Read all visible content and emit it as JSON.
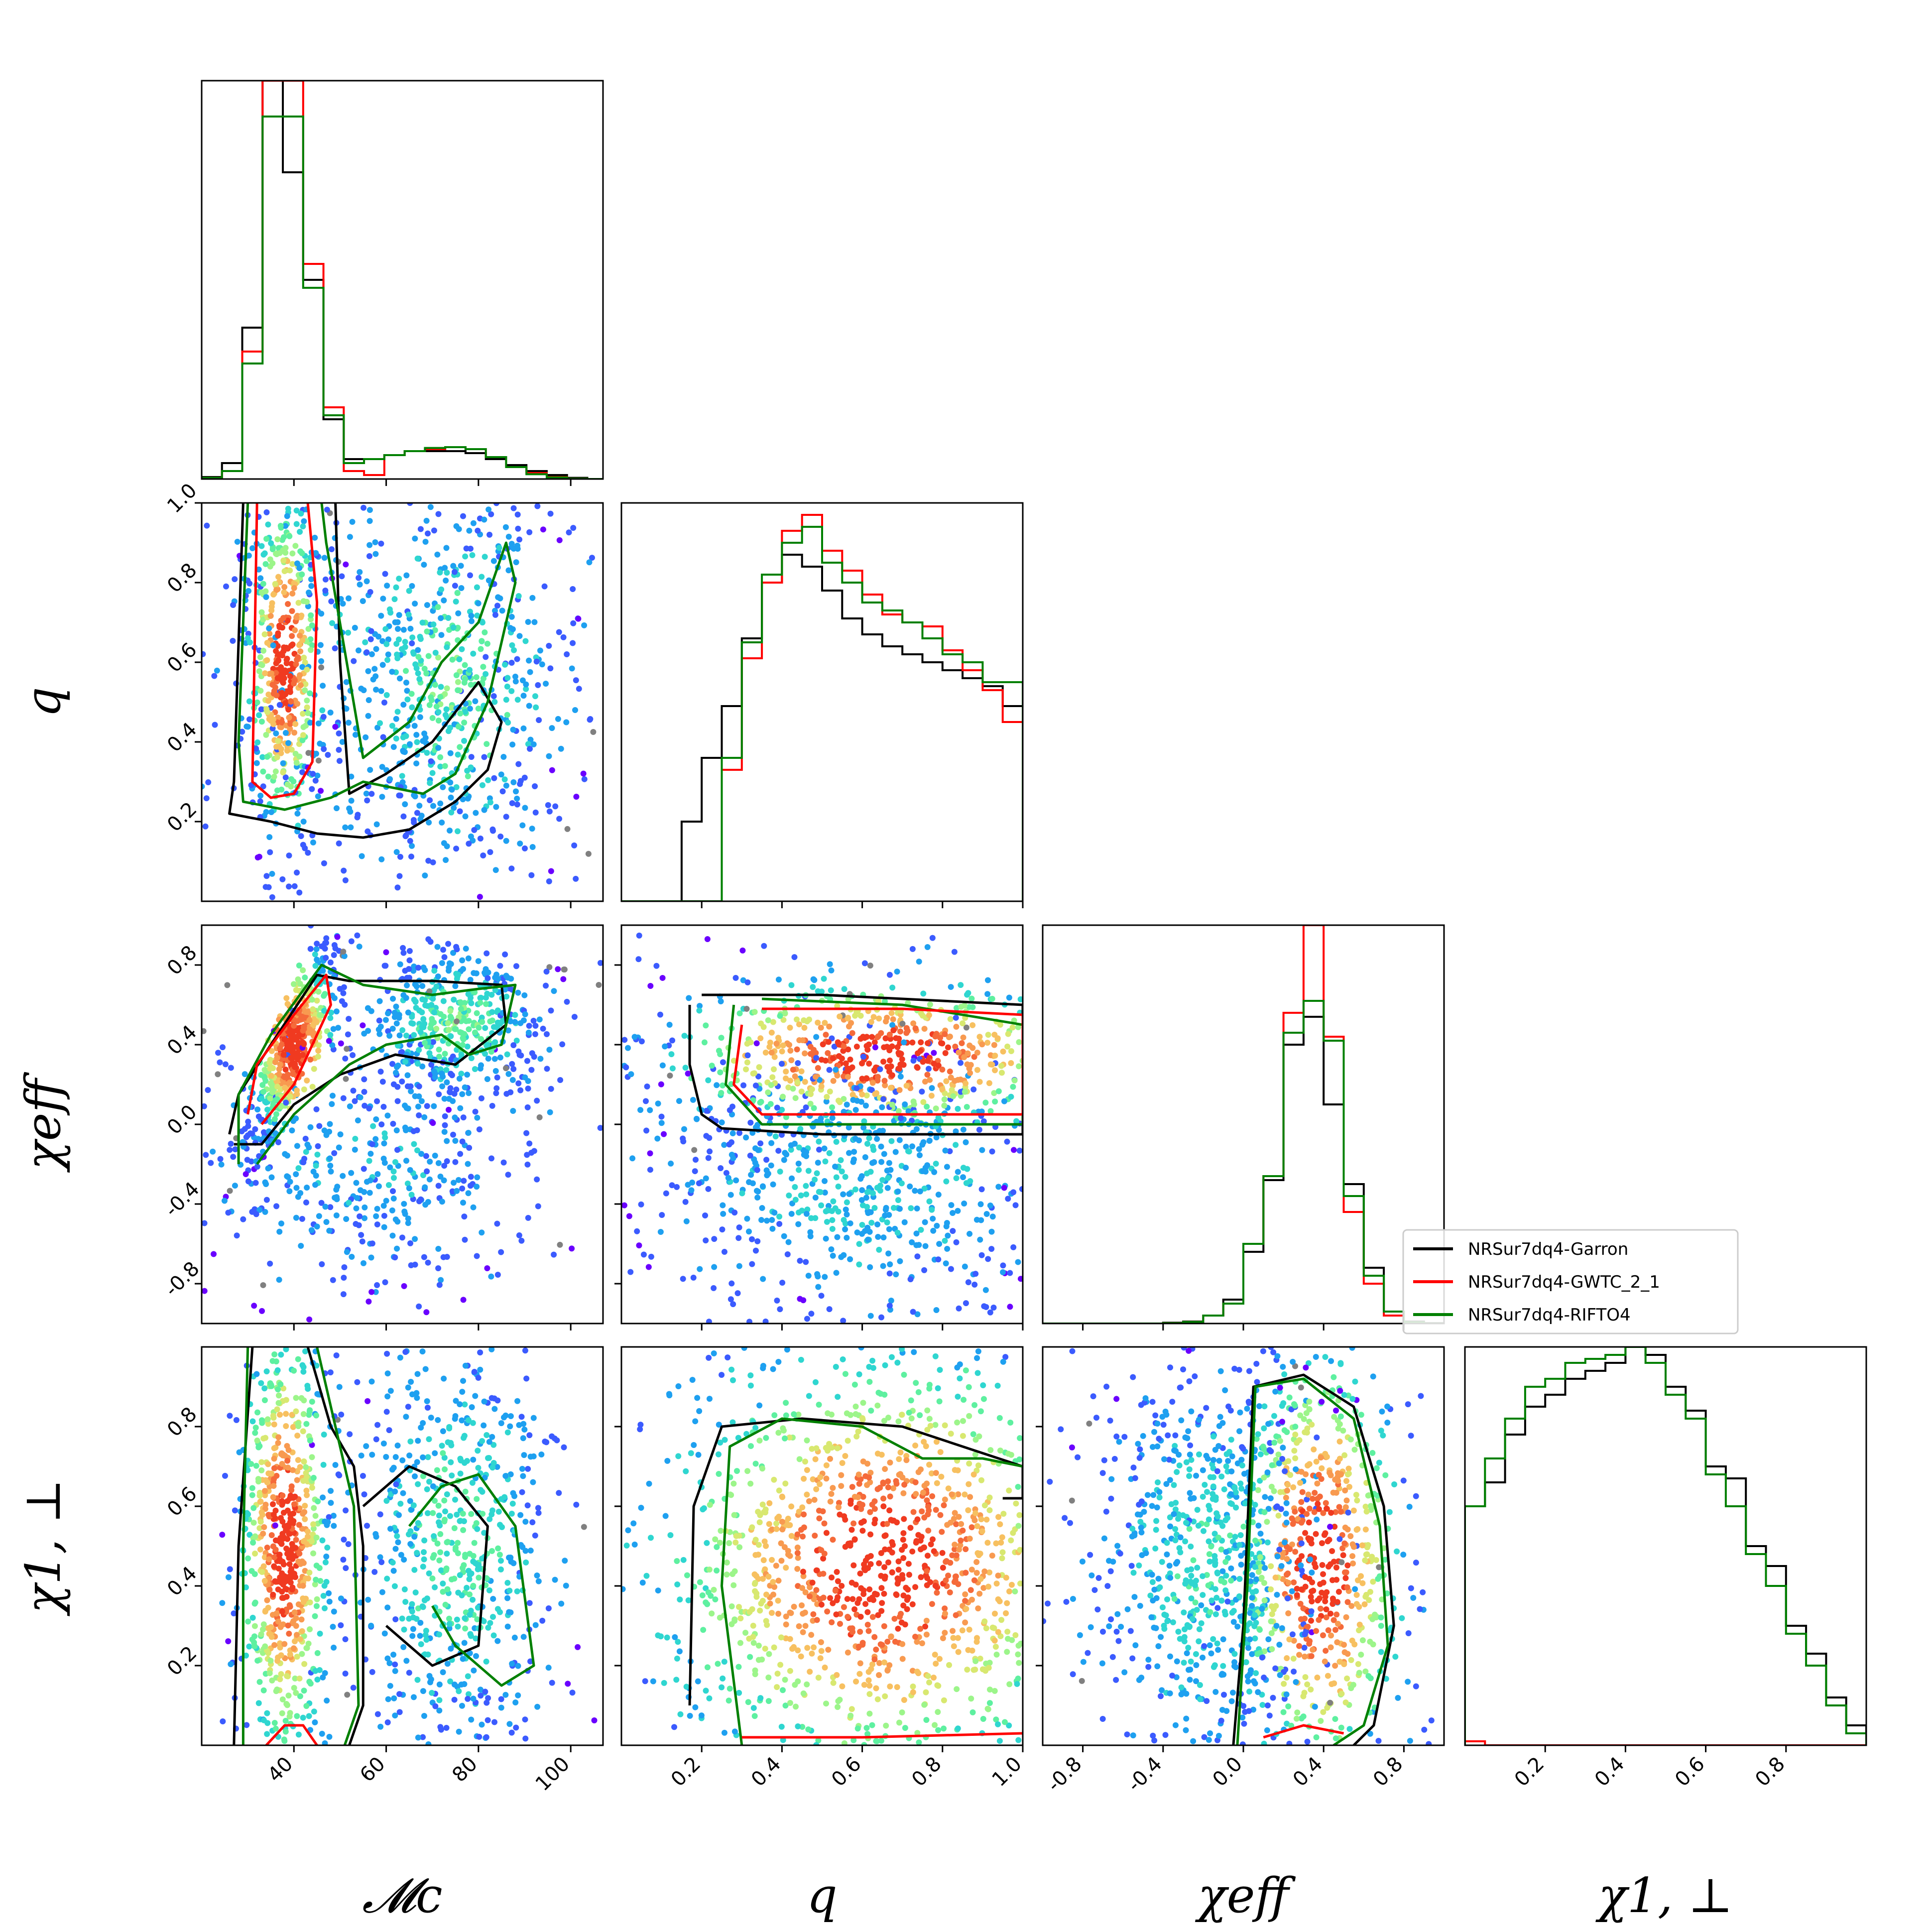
{
  "chart_data": {
    "type": "corner",
    "parameters": [
      {
        "key": "Mc",
        "label": "𝓜c",
        "range": [
          20,
          107
        ],
        "ticks": [
          40,
          60,
          80,
          100
        ]
      },
      {
        "key": "q",
        "label": "q",
        "range": [
          0.0,
          1.0
        ],
        "ticks": [
          0.2,
          0.4,
          0.6,
          0.8,
          1.0
        ]
      },
      {
        "key": "chi_eff",
        "label": "χeff",
        "range": [
          -1.0,
          1.0
        ],
        "ticks": [
          -0.8,
          -0.4,
          0.0,
          0.4,
          0.8
        ]
      },
      {
        "key": "chi_1_perp",
        "label": "χ1, ⊥",
        "range": [
          0.0,
          1.0
        ],
        "ticks": [
          0.2,
          0.4,
          0.6,
          0.8
        ]
      }
    ],
    "y_tick_labels": {
      "q": [
        "0.2",
        "0.4",
        "0.6",
        "0.8",
        "1.0"
      ],
      "chi_eff": [
        "-0.8",
        "-0.4",
        "0.0",
        "0.4",
        "0.8"
      ],
      "chi_1_perp": [
        "0.2",
        "0.4",
        "0.6",
        "0.8"
      ]
    },
    "x_tick_labels": {
      "Mc": [
        "40",
        "60",
        "80",
        "100"
      ],
      "q": [
        "0.2",
        "0.4",
        "0.6",
        "0.8",
        "1.0"
      ],
      "chi_eff": [
        "-0.8",
        "-0.4",
        "0.0",
        "0.4",
        "0.8"
      ],
      "chi_1_perp": [
        "0.2",
        "0.4",
        "0.6",
        "0.8"
      ]
    },
    "series": [
      {
        "name": "NRSur7dq4-Garron",
        "color": "#000000"
      },
      {
        "name": "NRSur7dq4-GWTC_2_1",
        "color": "#ff0000"
      },
      {
        "name": "NRSur7dq4-RIFTO4",
        "color": "#008000"
      }
    ],
    "histograms": {
      "Mc": {
        "edges": [
          20,
          24.4,
          28.8,
          33.2,
          37.6,
          42.0,
          46.4,
          50.8,
          55.2,
          59.6,
          64.0,
          68.4,
          72.8,
          77.2,
          81.6,
          86.0,
          90.4,
          94.8,
          99.2,
          103.6,
          107
        ],
        "NRSur7dq4-Garron": [
          0.005,
          0.04,
          0.38,
          1.0,
          0.77,
          0.5,
          0.15,
          0.05,
          0.05,
          0.06,
          0.07,
          0.07,
          0.07,
          0.065,
          0.05,
          0.035,
          0.02,
          0.01,
          0.003,
          0
        ],
        "NRSur7dq4-GWTC_2_1": [
          0.003,
          0.02,
          0.32,
          1.0,
          1.0,
          0.54,
          0.18,
          0.02,
          0.01,
          0.06,
          0.07,
          0.075,
          0.08,
          0.075,
          0.055,
          0.03,
          0.015,
          0.005,
          0.001,
          0
        ],
        "NRSur7dq4-RIFTO4": [
          0.003,
          0.02,
          0.29,
          0.91,
          0.91,
          0.48,
          0.16,
          0.04,
          0.05,
          0.06,
          0.07,
          0.078,
          0.08,
          0.075,
          0.055,
          0.03,
          0.012,
          0.004,
          0.001,
          0
        ]
      },
      "q": {
        "edges": [
          0.0,
          0.05,
          0.1,
          0.15,
          0.2,
          0.25,
          0.3,
          0.35,
          0.4,
          0.45,
          0.5,
          0.55,
          0.6,
          0.65,
          0.7,
          0.75,
          0.8,
          0.85,
          0.9,
          0.95,
          1.0
        ],
        "NRSur7dq4-Garron": [
          0,
          0,
          0,
          0.2,
          0.36,
          0.49,
          0.66,
          0.8,
          0.87,
          0.84,
          0.78,
          0.71,
          0.67,
          0.64,
          0.62,
          0.6,
          0.58,
          0.56,
          0.54,
          0.49
        ],
        "NRSur7dq4-GWTC_2_1": [
          0,
          0,
          0,
          0,
          0,
          0.33,
          0.61,
          0.8,
          0.93,
          0.97,
          0.88,
          0.83,
          0.77,
          0.72,
          0.7,
          0.69,
          0.63,
          0.58,
          0.53,
          0.45
        ],
        "NRSur7dq4-RIFTO4": [
          0,
          0,
          0,
          0,
          0,
          0.36,
          0.65,
          0.82,
          0.9,
          0.94,
          0.85,
          0.8,
          0.75,
          0.73,
          0.7,
          0.66,
          0.62,
          0.6,
          0.55,
          0.55
        ]
      },
      "chi_eff": {
        "edges": [
          -1.0,
          -0.9,
          -0.8,
          -0.7,
          -0.6,
          -0.5,
          -0.4,
          -0.3,
          -0.2,
          -0.1,
          0.0,
          0.1,
          0.2,
          0.3,
          0.4,
          0.5,
          0.6,
          0.7,
          0.8,
          0.9,
          1.0
        ],
        "NRSur7dq4-Garron": [
          0,
          0,
          0,
          0,
          0,
          0,
          0.002,
          0.005,
          0.02,
          0.06,
          0.18,
          0.36,
          0.7,
          0.77,
          0.55,
          0.35,
          0.14,
          0.03,
          0.005,
          0.001
        ],
        "NRSur7dq4-GWTC_2_1": [
          0,
          0,
          0,
          0,
          0,
          0,
          0.001,
          0.004,
          0.02,
          0.05,
          0.2,
          0.37,
          0.78,
          1.0,
          0.72,
          0.28,
          0.1,
          0.02,
          0.002,
          0
        ],
        "NRSur7dq4-RIFTO4": [
          0,
          0,
          0,
          0,
          0,
          0,
          0.001,
          0.004,
          0.02,
          0.05,
          0.2,
          0.37,
          0.73,
          0.81,
          0.71,
          0.32,
          0.12,
          0.03,
          0.003,
          0
        ]
      },
      "chi_1_perp": {
        "edges": [
          0.0,
          0.05,
          0.1,
          0.15,
          0.2,
          0.25,
          0.3,
          0.35,
          0.4,
          0.45,
          0.5,
          0.55,
          0.6,
          0.65,
          0.7,
          0.75,
          0.8,
          0.85,
          0.9,
          0.95,
          1.0
        ],
        "NRSur7dq4-Garron": [
          0.6,
          0.66,
          0.78,
          0.85,
          0.88,
          0.92,
          0.94,
          0.96,
          1.0,
          0.98,
          0.9,
          0.84,
          0.7,
          0.67,
          0.5,
          0.45,
          0.3,
          0.23,
          0.12,
          0.05
        ],
        "NRSur7dq4-GWTC_2_1": [
          0.01,
          0,
          0,
          0,
          0,
          0,
          0,
          0,
          0,
          0,
          0,
          0,
          0,
          0,
          0,
          0,
          0,
          0,
          0,
          0
        ],
        "NRSur7dq4-RIFTO4": [
          0.6,
          0.72,
          0.82,
          0.9,
          0.92,
          0.96,
          0.97,
          0.98,
          1.0,
          0.96,
          0.88,
          0.82,
          0.68,
          0.6,
          0.48,
          0.4,
          0.28,
          0.2,
          0.1,
          0.03
        ]
      }
    },
    "scatter_colormap": "rainbow (purple = low density, red = high density; grey = outlying samples)",
    "grid": false,
    "legend_position": "upper-right of the lower triangle (beside the chi_eff histogram)"
  }
}
